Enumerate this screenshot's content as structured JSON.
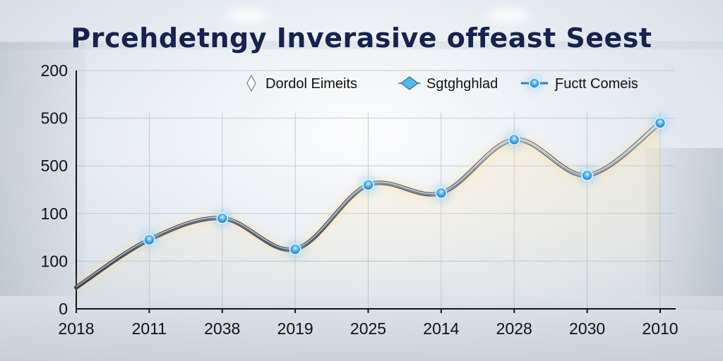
{
  "title": "Prcehdetngy Inverasive offeast Seest",
  "legend": [
    {
      "label": "Dordol Eimeits",
      "icon": "hollow-diamond-icon"
    },
    {
      "label": "Sgtghghlad",
      "icon": "blue-diamond-icon"
    },
    {
      "label": "Ƒuctt Comeis",
      "icon": "glowing-dot-line-icon"
    }
  ],
  "colors": {
    "title": "#16224f",
    "line": "#6f7681",
    "marker": "#2f9be8",
    "marker_glow": "#7cc8ff",
    "glow": "#ffd98a"
  },
  "chart_data": {
    "type": "line",
    "title": "Prcehdetngy Inverasive offeast Seest",
    "xlabel": "",
    "ylabel": "",
    "categories": [
      "2018",
      "2011",
      "2038",
      "2019",
      "2025",
      "2014",
      "2028",
      "2030",
      "2010"
    ],
    "y_tick_labels": [
      "0",
      "100",
      "100",
      "500",
      "500",
      "200"
    ],
    "y_tick_positions": [
      0,
      1,
      2,
      3,
      4,
      5
    ],
    "ylim": [
      0,
      5
    ],
    "grid": true,
    "legend_position": "top-right",
    "series": [
      {
        "name": "Ƒuctt Comeis",
        "values": [
          0.45,
          1.45,
          1.9,
          1.25,
          2.6,
          2.43,
          3.55,
          2.8,
          3.9
        ],
        "markers": [
          false,
          true,
          true,
          true,
          true,
          true,
          true,
          true,
          true
        ]
      }
    ]
  }
}
